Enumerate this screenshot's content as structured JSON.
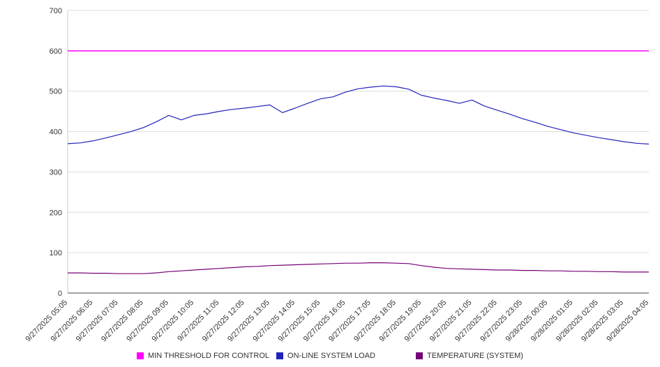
{
  "chart_data": {
    "type": "line",
    "title": "",
    "xlabel": "",
    "ylabel": "",
    "ylim": [
      0,
      700
    ],
    "yticks": [
      0,
      100,
      200,
      300,
      400,
      500,
      600,
      700
    ],
    "grid": "horizontal",
    "legend_position": "bottom",
    "colors": {
      "grid": "#dddddd",
      "axis_left": "#cccccc",
      "axis_bottom": "#444444",
      "tick_text": "#333333",
      "background": "#ffffff"
    },
    "x_labels": [
      "9/27/2025 05:05",
      "9/27/2025 06:05",
      "9/27/2025 07:05",
      "9/27/2025 08:05",
      "9/27/2025 09:05",
      "9/27/2025 10:05",
      "9/27/2025 11:05",
      "9/27/2025 12:05",
      "9/27/2025 13:05",
      "9/27/2025 14:05",
      "9/27/2025 15:05",
      "9/27/2025 16:05",
      "9/27/2025 17:05",
      "9/27/2025 18:05",
      "9/27/2025 19:05",
      "9/27/2025 20:05",
      "9/27/2025 21:05",
      "9/27/2025 22:05",
      "9/27/2025 23:05",
      "9/28/2025 00:05",
      "9/28/2025 01:05",
      "9/28/2025 02:05",
      "9/28/2025 03:05",
      "9/28/2025 04:05"
    ],
    "series": [
      {
        "name": "MIN THRESHOLD FOR CONTROL",
        "color": "#ff00ff",
        "stroke_width": 1.5,
        "values": [
          600,
          600
        ]
      },
      {
        "name": "ON-LINE SYSTEM LOAD",
        "color": "#2222bb",
        "stroke_width": 1.2,
        "values": [
          370,
          372,
          377,
          384,
          392,
          400,
          410,
          424,
          440,
          429,
          440,
          444,
          450,
          455,
          458,
          462,
          466,
          447,
          458,
          470,
          481,
          486,
          498,
          506,
          510,
          513,
          511,
          505,
          490,
          483,
          477,
          470,
          478,
          463,
          453,
          443,
          432,
          423,
          413,
          405,
          397,
          391,
          385,
          380,
          375,
          371,
          369
        ]
      },
      {
        "name": "TEMPERATURE (SYSTEM)",
        "color": "#760076",
        "stroke_width": 1.2,
        "values": [
          50,
          50,
          49,
          49,
          48,
          48,
          48,
          50,
          53,
          55,
          57,
          59,
          61,
          63,
          65,
          66,
          68,
          69,
          70,
          71,
          72,
          73,
          74,
          74,
          75,
          75,
          74,
          73,
          68,
          64,
          61,
          60,
          59,
          58,
          57,
          57,
          56,
          56,
          55,
          55,
          54,
          54,
          53,
          53,
          52,
          52,
          52
        ]
      }
    ]
  }
}
